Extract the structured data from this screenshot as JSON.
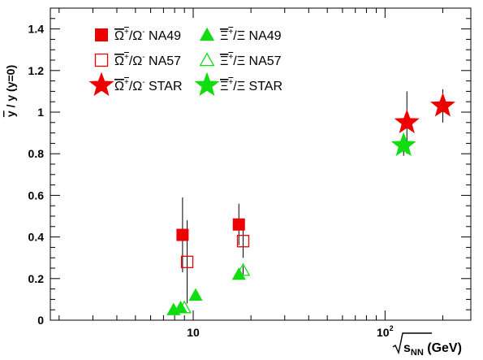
{
  "chart_data": {
    "type": "scatter",
    "x_scale": "log",
    "xlim": [
      1.8,
      280
    ],
    "ylim": [
      0,
      1.5
    ],
    "grid": false,
    "legend_position": "top-left",
    "xlabel_radicand": "s",
    "xlabel_subscript": "NN",
    "xlabel_unit": "(GeV)",
    "ylabel": "y / y  (y=0)",
    "ylabel_overline": "y",
    "x_ticks": [
      {
        "value": 10,
        "label": "10",
        "sup": ""
      },
      {
        "value": 100,
        "label": "10",
        "sup": "2"
      }
    ],
    "y_ticks": [
      {
        "value": 0,
        "label": "0"
      },
      {
        "value": 0.2,
        "label": "0.2"
      },
      {
        "value": 0.4,
        "label": "0.4"
      },
      {
        "value": 0.6,
        "label": "0.6"
      },
      {
        "value": 0.8,
        "label": "0.8"
      },
      {
        "value": 1,
        "label": "1"
      },
      {
        "value": 1.2,
        "label": "1.2"
      },
      {
        "value": 1.4,
        "label": "1.4"
      }
    ],
    "series": [
      {
        "name_overline": "Ω",
        "name_overline_sup": "+",
        "name_rest": "/Ω",
        "name_rest_sup": "-",
        "name_exp": "NA49",
        "marker": "square",
        "filled": true,
        "color": "#ee0000",
        "points": [
          {
            "x": 8.8,
            "y": 0.41,
            "err": 0.18
          },
          {
            "x": 17.3,
            "y": 0.46,
            "err": 0.1
          }
        ]
      },
      {
        "name_overline": "Ω",
        "name_overline_sup": "+",
        "name_rest": "/Ω",
        "name_rest_sup": "-",
        "name_exp": "NA57",
        "marker": "square",
        "filled": false,
        "color": "#ee0000",
        "points": [
          {
            "x": 9.3,
            "y": 0.28,
            "err": 0.2
          },
          {
            "x": 18.2,
            "y": 0.38,
            "err": 0.08
          }
        ]
      },
      {
        "name_overline": "Ω",
        "name_overline_sup": "+",
        "name_rest": "/Ω",
        "name_rest_sup": "-",
        "name_exp": "STAR",
        "marker": "star",
        "filled": true,
        "color": "#ee0000",
        "points": [
          {
            "x": 130,
            "y": 0.95,
            "err": 0.15
          },
          {
            "x": 200,
            "y": 1.03,
            "err": 0.08
          }
        ]
      },
      {
        "name_overline": "Ξ",
        "name_overline_sup": "+",
        "name_rest": "/Ξ",
        "name_rest_sup": "",
        "name_exp": "NA49",
        "marker": "triangle",
        "filled": true,
        "color": "#11dd11",
        "points": [
          {
            "x": 7.9,
            "y": 0.05,
            "err": 0.0
          },
          {
            "x": 8.6,
            "y": 0.06,
            "err": 0.0
          },
          {
            "x": 10.3,
            "y": 0.12,
            "err": 0.0
          },
          {
            "x": 17.3,
            "y": 0.22,
            "err": 0.02
          }
        ]
      },
      {
        "name_overline": "Ξ",
        "name_overline_sup": "+",
        "name_rest": "/Ξ",
        "name_rest_sup": "",
        "name_exp": "NA57",
        "marker": "triangle",
        "filled": false,
        "color": "#11dd11",
        "points": [
          {
            "x": 9.0,
            "y": 0.06,
            "err": 0.0
          },
          {
            "x": 18.2,
            "y": 0.24,
            "err": 0.02
          }
        ]
      },
      {
        "name_overline": "Ξ",
        "name_overline_sup": "+",
        "name_rest": "/Ξ",
        "name_rest_sup": "",
        "name_exp": "STAR",
        "marker": "star",
        "filled": true,
        "color": "#11dd11",
        "points": [
          {
            "x": 125,
            "y": 0.84,
            "err": 0.05
          }
        ]
      }
    ]
  }
}
